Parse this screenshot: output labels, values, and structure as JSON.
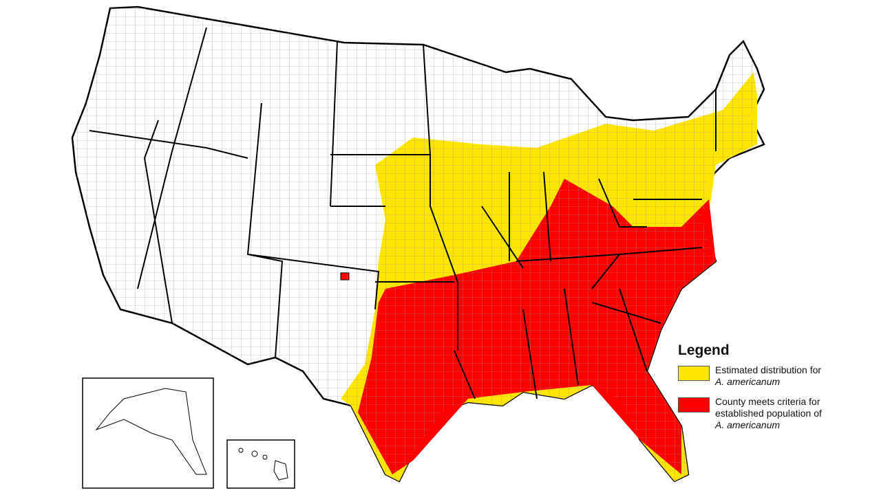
{
  "legend": {
    "title": "Legend",
    "items": [
      {
        "text": "Estimated distribution for",
        "species": "A. americanum",
        "color": "#FFE600"
      },
      {
        "text": "County meets criteria for established population of",
        "species": "A. americanum",
        "color": "#FF0000"
      }
    ]
  },
  "colors": {
    "land": "#FFFFFF",
    "border": "#000000",
    "county_line": "#888888"
  },
  "insets": [
    "Alaska",
    "Hawaii"
  ]
}
